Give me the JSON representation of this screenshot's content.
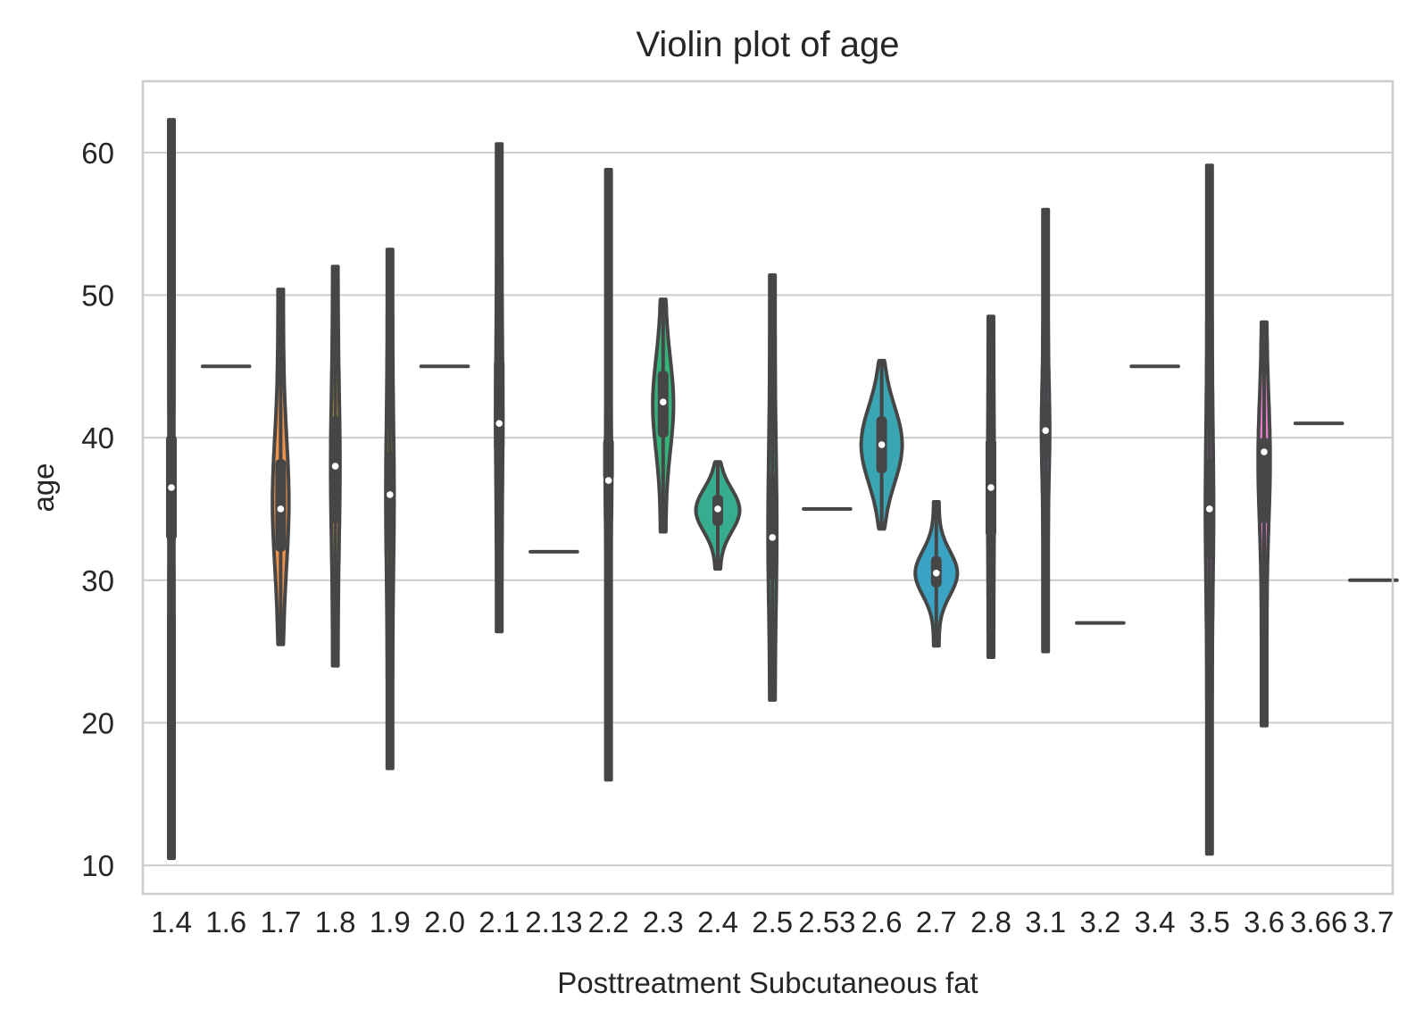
{
  "chart_data": {
    "type": "violin",
    "title": "Violin plot of age",
    "xlabel": "Posttreatment Subcutaneous fat",
    "ylabel": "age",
    "ylim": [
      8,
      65
    ],
    "yticks": [
      10,
      20,
      30,
      40,
      50,
      60
    ],
    "grid": true,
    "series": [
      {
        "category": "1.4",
        "color": "#4c4c4c",
        "min": 10.5,
        "max": 62.3,
        "q1": 32.8,
        "median": 36.5,
        "q3": 40.2,
        "max_width": 0.09
      },
      {
        "category": "1.6",
        "color": "#f77189",
        "value": 45
      },
      {
        "category": "1.7",
        "color": "#f0934a",
        "min": 25.5,
        "max": 50.4,
        "q1": 32.0,
        "median": 35.0,
        "q3": 38.5,
        "max_width": 0.3
      },
      {
        "category": "1.8",
        "color": "#c8a23a",
        "min": 24.0,
        "max": 52.0,
        "q1": 34.0,
        "median": 38.0,
        "q3": 41.5,
        "max_width": 0.17
      },
      {
        "category": "1.9",
        "color": "#a8a23a",
        "min": 16.8,
        "max": 53.2,
        "q1": 32.0,
        "median": 36.0,
        "q3": 39.0,
        "max_width": 0.15
      },
      {
        "category": "2.0",
        "color": "#87a83a",
        "value": 45
      },
      {
        "category": "2.1",
        "color": "#8cab3a",
        "min": 26.4,
        "max": 60.6,
        "q1": 39.0,
        "median": 41.0,
        "q3": 45.5,
        "max_width": 0.13
      },
      {
        "category": "2.13",
        "color": "#55ad3a",
        "value": 32
      },
      {
        "category": "2.2",
        "color": "#33b33a",
        "min": 16.0,
        "max": 58.8,
        "q1": 37.0,
        "median": 37.0,
        "q3": 40.0,
        "max_width": 0.12
      },
      {
        "category": "2.3",
        "color": "#33b37a",
        "min": 33.4,
        "max": 49.7,
        "q1": 40.0,
        "median": 42.5,
        "q3": 44.7,
        "max_width": 0.38
      },
      {
        "category": "2.4",
        "color": "#36ad8f",
        "min": 30.8,
        "max": 38.3,
        "q1": 33.8,
        "median": 35.0,
        "q3": 36.0,
        "max_width": 0.8
      },
      {
        "category": "2.5",
        "color": "#38aa9b",
        "min": 21.6,
        "max": 51.4,
        "q1": 30.0,
        "median": 33.0,
        "q3": 37.5,
        "max_width": 0.16
      },
      {
        "category": "2.53",
        "color": "#39a8a6",
        "value": 35
      },
      {
        "category": "2.6",
        "color": "#3aa6b3",
        "min": 33.6,
        "max": 45.4,
        "q1": 37.5,
        "median": 39.5,
        "q3": 41.5,
        "max_width": 0.75
      },
      {
        "category": "2.7",
        "color": "#3ba3c3",
        "min": 25.4,
        "max": 35.5,
        "q1": 29.5,
        "median": 30.5,
        "q3": 31.7,
        "max_width": 0.77
      },
      {
        "category": "2.8",
        "color": "#3d9fd8",
        "min": 24.6,
        "max": 48.5,
        "q1": 33.0,
        "median": 36.5,
        "q3": 40.0,
        "max_width": 0.12
      },
      {
        "category": "3.1",
        "color": "#7f8ef0",
        "min": 25.0,
        "max": 56.0,
        "q1": 38.5,
        "median": 40.5,
        "q3": 42.5,
        "max_width": 0.15
      },
      {
        "category": "3.2",
        "color": "#a68df0",
        "value": 27
      },
      {
        "category": "3.4",
        "color": "#c58af0",
        "value": 45
      },
      {
        "category": "3.5",
        "color": "#d984e0",
        "min": 10.8,
        "max": 59.1,
        "q1": 31.5,
        "median": 35.0,
        "q3": 38.5,
        "max_width": 0.15
      },
      {
        "category": "3.6",
        "color": "#e57cc8",
        "min": 19.8,
        "max": 48.1,
        "q1": 34.0,
        "median": 39.0,
        "q3": 40.0,
        "max_width": 0.22
      },
      {
        "category": "3.66",
        "color": "#f176aa",
        "value": 41
      },
      {
        "category": "3.7",
        "color": "#f77189",
        "value": 30
      }
    ]
  }
}
